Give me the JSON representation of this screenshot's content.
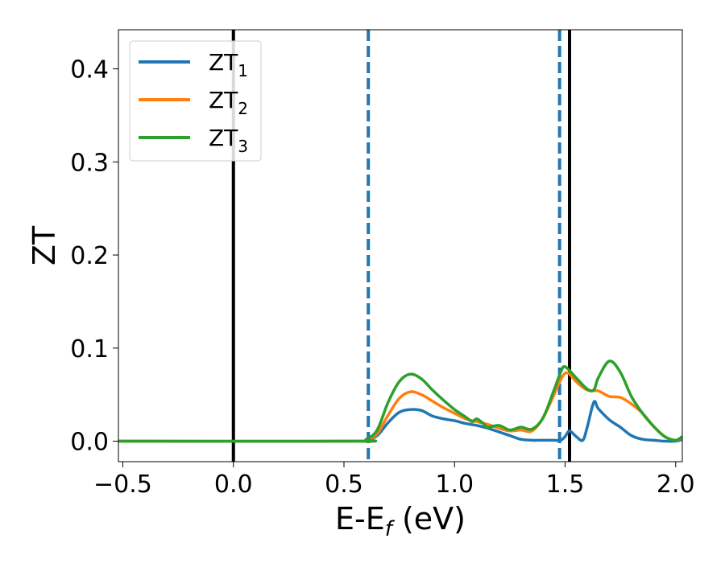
{
  "chart_data": {
    "type": "line",
    "xlabel": "E-E",
    "xlabel_sub": "f",
    "xlabel_unit": " (eV)",
    "ylabel": "ZT",
    "xlim": [
      -0.52,
      2.03
    ],
    "ylim": [
      -0.022,
      0.442
    ],
    "xticks": [
      -0.5,
      0.0,
      0.5,
      1.0,
      1.5,
      2.0
    ],
    "xtick_labels": [
      "−0.5",
      "0.0",
      "0.5",
      "1.0",
      "1.5",
      "2.0"
    ],
    "yticks": [
      0.0,
      0.1,
      0.2,
      0.3,
      0.4
    ],
    "ytick_labels": [
      "0.0",
      "0.1",
      "0.2",
      "0.3",
      "0.4"
    ],
    "grid": false,
    "legend": {
      "position": "top-left",
      "entries": [
        {
          "label": "ZT",
          "sub": "1",
          "color": "#1f77b4"
        },
        {
          "label": "ZT",
          "sub": "2",
          "color": "#ff7f0e"
        },
        {
          "label": "ZT",
          "sub": "3",
          "color": "#2ca02c"
        }
      ]
    },
    "vlines": [
      {
        "x": 0.0,
        "style": "solid",
        "color": "#000000"
      },
      {
        "x": 0.61,
        "style": "dashed",
        "color": "#1f77b4"
      },
      {
        "x": 1.475,
        "style": "dashed",
        "color": "#1f77b4"
      },
      {
        "x": 1.52,
        "style": "solid",
        "color": "#000000"
      }
    ],
    "series": [
      {
        "name": "ZT1",
        "color": "#1f77b4",
        "x": [
          -0.52,
          0.55,
          0.6,
          0.65,
          0.7,
          0.75,
          0.8,
          0.85,
          0.9,
          0.95,
          1.0,
          1.05,
          1.1,
          1.15,
          1.2,
          1.25,
          1.3,
          1.35,
          1.4,
          1.45,
          1.48,
          1.5,
          1.52,
          1.55,
          1.58,
          1.6,
          1.63,
          1.65,
          1.7,
          1.75,
          1.8,
          1.85,
          1.9,
          1.95,
          2.0,
          2.03
        ],
        "y": [
          0.0,
          0.0,
          0.001,
          0.006,
          0.02,
          0.031,
          0.034,
          0.033,
          0.027,
          0.024,
          0.022,
          0.019,
          0.017,
          0.014,
          0.01,
          0.006,
          0.002,
          0.001,
          0.001,
          0.001,
          0.001,
          0.005,
          0.011,
          0.005,
          0.001,
          0.015,
          0.042,
          0.035,
          0.023,
          0.015,
          0.006,
          0.002,
          0.001,
          0.0,
          0.0,
          0.002
        ]
      },
      {
        "name": "ZT2",
        "color": "#ff7f0e",
        "x": [
          -0.52,
          0.55,
          0.6,
          0.65,
          0.7,
          0.75,
          0.8,
          0.85,
          0.9,
          0.95,
          1.0,
          1.05,
          1.1,
          1.15,
          1.2,
          1.25,
          1.3,
          1.35,
          1.4,
          1.45,
          1.48,
          1.5,
          1.52,
          1.55,
          1.6,
          1.65,
          1.7,
          1.75,
          1.8,
          1.85,
          1.9,
          1.95,
          2.0,
          2.03
        ],
        "y": [
          0.0,
          0.0,
          0.001,
          0.008,
          0.028,
          0.046,
          0.053,
          0.05,
          0.043,
          0.036,
          0.03,
          0.024,
          0.021,
          0.018,
          0.014,
          0.011,
          0.012,
          0.011,
          0.025,
          0.05,
          0.066,
          0.073,
          0.072,
          0.064,
          0.055,
          0.054,
          0.048,
          0.047,
          0.04,
          0.03,
          0.016,
          0.005,
          0.001,
          0.004
        ]
      },
      {
        "name": "ZT3",
        "color": "#2ca02c",
        "x": [
          -0.52,
          0.55,
          0.6,
          0.65,
          0.7,
          0.75,
          0.8,
          0.85,
          0.9,
          0.95,
          1.0,
          1.05,
          1.08,
          1.1,
          1.13,
          1.15,
          1.2,
          1.25,
          1.3,
          1.35,
          1.4,
          1.45,
          1.48,
          1.5,
          1.55,
          1.6,
          1.63,
          1.65,
          1.7,
          1.75,
          1.8,
          1.85,
          1.9,
          1.95,
          2.0,
          2.03
        ],
        "y": [
          0.0,
          0.0,
          0.002,
          0.012,
          0.042,
          0.064,
          0.072,
          0.067,
          0.055,
          0.044,
          0.034,
          0.026,
          0.021,
          0.024,
          0.019,
          0.015,
          0.017,
          0.012,
          0.015,
          0.013,
          0.025,
          0.055,
          0.074,
          0.08,
          0.068,
          0.056,
          0.055,
          0.068,
          0.086,
          0.074,
          0.048,
          0.03,
          0.016,
          0.005,
          0.001,
          0.005
        ]
      }
    ]
  }
}
